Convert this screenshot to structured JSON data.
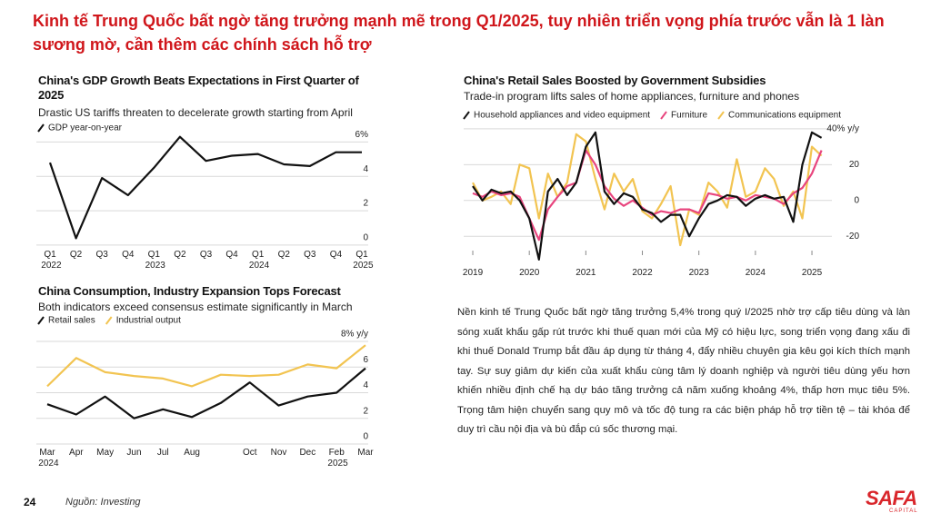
{
  "header": {
    "title": "Kinh tế Trung Quốc bất ngờ tăng trưởng mạnh mẽ trong Q1/2025, tuy nhiên triển vọng phía trước vẫn là 1 làn sương mờ, cần thêm các chính sách hỗ trợ"
  },
  "chart_data": [
    {
      "type": "line",
      "title": "China's GDP Growth Beats Expectations in First Quarter of 2025",
      "subtitle": "Drastic US tariffs threaten to decelerate growth starting from April",
      "categories": [
        "Q1 2022",
        "Q2",
        "Q3",
        "Q4",
        "Q1 2023",
        "Q2",
        "Q3",
        "Q4",
        "Q1 2024",
        "Q2",
        "Q3",
        "Q4",
        "Q1 2025"
      ],
      "series": [
        {
          "name": "GDP year-on-year",
          "color": "#111111",
          "values": [
            4.8,
            0.4,
            3.9,
            2.9,
            4.5,
            6.3,
            4.9,
            5.2,
            5.3,
            4.7,
            4.6,
            5.4,
            5.4
          ]
        }
      ],
      "ylim": [
        -0.4,
        6.6
      ],
      "yticks": [
        0,
        2,
        4,
        {
          "value": 6,
          "label": "6%"
        }
      ],
      "grid": true,
      "legend": "top-left"
    },
    {
      "type": "line",
      "title": "China Consumption, Industry Expansion Tops Forecast",
      "subtitle": "Both indicators exceed consensus estimate significantly in March",
      "categories": [
        "Mar 2024",
        "Apr",
        "May",
        "Jun",
        "Jul",
        "Aug",
        null,
        "Oct",
        "Nov",
        "Dec",
        "Feb 2025",
        "Mar"
      ],
      "series": [
        {
          "name": "Retail sales",
          "color": "#111111",
          "values": [
            3.1,
            2.3,
            3.7,
            2.0,
            2.7,
            2.1,
            3.2,
            4.8,
            3.0,
            3.7,
            4.0,
            5.9
          ]
        },
        {
          "name": "Industrial output",
          "color": "#f2c451",
          "values": [
            4.5,
            6.7,
            5.6,
            5.3,
            5.1,
            4.5,
            5.4,
            5.3,
            5.4,
            6.2,
            5.9,
            7.7
          ]
        }
      ],
      "ylim": [
        -0.5,
        8.6
      ],
      "yticks": [
        0,
        2,
        4,
        6,
        {
          "value": 8,
          "label": "8% y/y"
        }
      ],
      "grid": true,
      "legend": "top-left"
    },
    {
      "type": "line",
      "title": "China's Retail Sales Boosted by Government Subsidies",
      "subtitle": "Trade-in program lifts sales of home appliances, furniture and phones",
      "x": [
        2019,
        2019.17,
        2019.33,
        2019.5,
        2019.67,
        2019.83,
        2020,
        2020.17,
        2020.33,
        2020.5,
        2020.67,
        2020.83,
        2021,
        2021.17,
        2021.33,
        2021.5,
        2021.67,
        2021.83,
        2022,
        2022.17,
        2022.33,
        2022.5,
        2022.67,
        2022.83,
        2023,
        2023.17,
        2023.33,
        2023.5,
        2023.67,
        2023.83,
        2024,
        2024.17,
        2024.33,
        2024.5,
        2024.67,
        2024.83,
        2025,
        2025.17
      ],
      "series": [
        {
          "name": "Household appliances and video equipment",
          "color": "#111111",
          "values": [
            8,
            0,
            6,
            4,
            5,
            0,
            -10,
            -33,
            5,
            12,
            3,
            10,
            30,
            38,
            5,
            -2,
            4,
            2,
            -5,
            -7,
            -12,
            -8,
            -8,
            -20,
            -10,
            -2,
            0,
            3,
            2,
            -3,
            1,
            3,
            1,
            2,
            -12,
            20,
            38,
            35
          ]
        },
        {
          "name": "Furniture",
          "color": "#e8457e",
          "values": [
            4,
            2,
            5,
            3,
            4,
            2,
            -10,
            -22,
            -5,
            2,
            8,
            10,
            28,
            20,
            8,
            1,
            -3,
            0,
            -4,
            -8,
            -6,
            -7,
            -5,
            -5,
            -7,
            4,
            3,
            1,
            2,
            0,
            3,
            2,
            1,
            -2,
            4,
            7,
            15,
            28
          ]
        },
        {
          "name": "Communications equipment",
          "color": "#f2c451",
          "values": [
            10,
            0,
            2,
            5,
            -2,
            20,
            18,
            -10,
            15,
            2,
            10,
            37,
            33,
            12,
            -5,
            15,
            5,
            12,
            -6,
            -10,
            -2,
            8,
            -25,
            -5,
            -8,
            10,
            5,
            -4,
            23,
            2,
            5,
            18,
            12,
            -3,
            5,
            -10,
            30,
            25
          ]
        }
      ],
      "xlim": [
        2018.9,
        2025.35
      ],
      "xticks": [
        2019,
        2020,
        2021,
        2022,
        2023,
        2024,
        2025
      ],
      "ylim": [
        -28,
        44
      ],
      "yticks": [
        -20,
        0,
        20,
        {
          "value": 40,
          "label": "40% y/y"
        }
      ],
      "grid": true,
      "legend": "top-left"
    }
  ],
  "body": {
    "paragraph": "Nền kinh tế Trung Quốc bất ngờ tăng trưởng 5,4% trong quý I/2025 nhờ trợ cấp tiêu dùng và làn sóng xuất khẩu gấp rút trước khi thuế quan mới của Mỹ có hiệu lực, song triển vọng đang xấu đi khi thuế Donald Trump bắt đầu áp dụng từ tháng 4, đẩy nhiều chuyên gia kêu gọi kích thích mạnh tay. Sự suy giảm dự kiến của xuất khẩu cùng tâm lý doanh nghiệp và người tiêu dùng yếu hơn khiến nhiều định chế hạ dự báo tăng trưởng cả năm xuống khoảng 4%, thấp hơn mục tiêu 5%. Trọng tâm hiện chuyển sang quy mô và tốc độ tung ra các biện pháp hỗ trợ tiền tệ – tài khóa để duy trì cầu nội địa và bù đắp cú sốc thương mại."
  },
  "footer": {
    "page_number": "24",
    "source": "Nguồn: Investing",
    "logo": "SAFA",
    "logo_sub": "CAPITAL"
  }
}
